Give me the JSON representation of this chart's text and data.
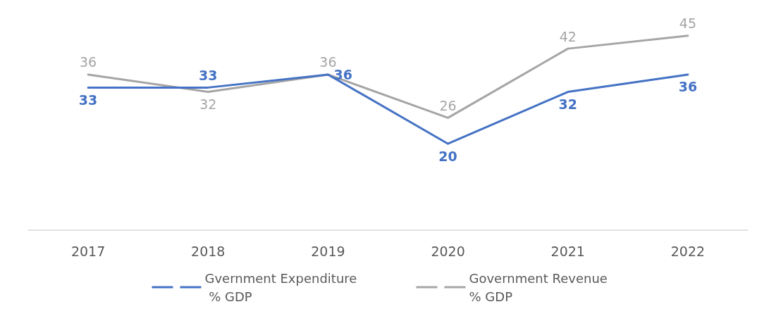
{
  "chart_data": {
    "type": "line",
    "categories": [
      "2017",
      "2018",
      "2019",
      "2020",
      "2021",
      "2022"
    ],
    "series": [
      {
        "name": "Gvernment Expenditure % GDP",
        "color": "#4472c4",
        "values": [
          33,
          33,
          36,
          20,
          32,
          36
        ]
      },
      {
        "name": "Government Revenue % GDP",
        "color": "#a5a5a5",
        "values": [
          36,
          32,
          36,
          26,
          42,
          45
        ]
      }
    ],
    "tick_labels": "x",
    "data_labels": true,
    "grid": false,
    "legend": "bottom",
    "marker": "none",
    "line_style": "solid"
  }
}
